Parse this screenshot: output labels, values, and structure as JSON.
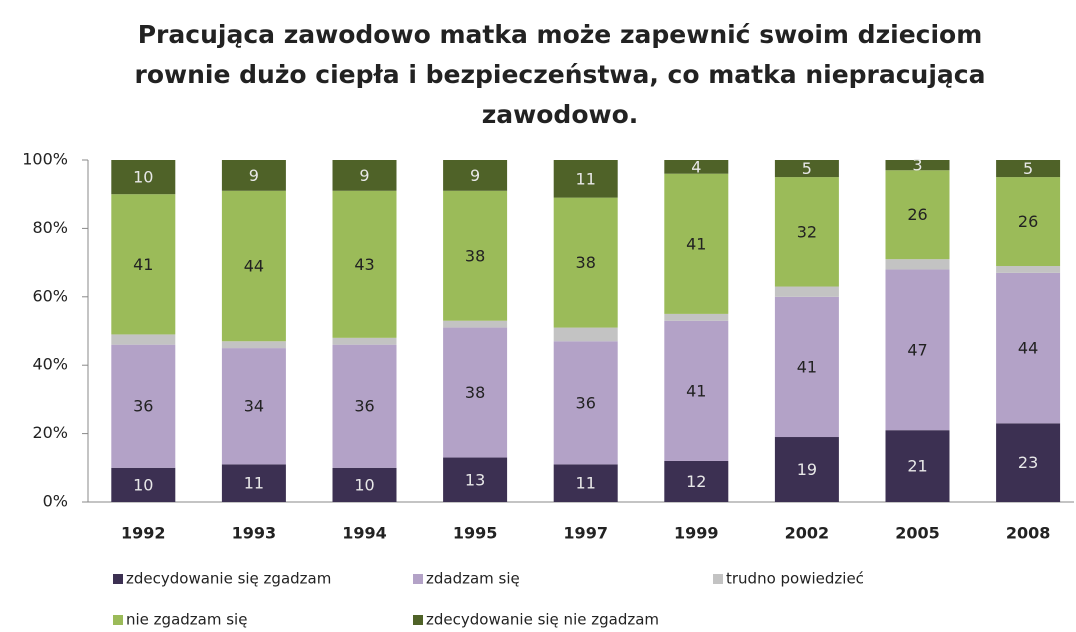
{
  "chart_data": {
    "type": "stacked_bar",
    "title": [
      "Pracująca zawodowo matka może zapewnić swoim dzieciom",
      "rownie dużo ciepła i bezpieczeństwa, co matka niepracująca",
      "zawodowo."
    ],
    "categories": [
      "1992",
      "1993",
      "1994",
      "1995",
      "1997",
      "1999",
      "2002",
      "2005",
      "2008"
    ],
    "series": [
      {
        "name": "zdecydowanie się zgadzam",
        "color": "#3c3052",
        "values": [
          10,
          11,
          10,
          13,
          11,
          12,
          19,
          21,
          23
        ]
      },
      {
        "name": "zdadzam się",
        "color": "#b3a2c7",
        "values": [
          36,
          34,
          36,
          38,
          36,
          41,
          41,
          47,
          44
        ]
      },
      {
        "name": "trudno powiedzieć",
        "color": "#c3c3c3",
        "values": [
          3,
          2,
          2,
          2,
          4,
          2,
          3,
          3,
          2
        ]
      },
      {
        "name": "nie zgadzam się",
        "color": "#9bbb59",
        "values": [
          41,
          44,
          43,
          38,
          38,
          41,
          32,
          26,
          26
        ]
      },
      {
        "name": "zdecydowanie się nie zgadzam",
        "color": "#4f6228",
        "values": [
          10,
          9,
          9,
          9,
          11,
          4,
          5,
          3,
          5
        ]
      }
    ],
    "label_series": [
      0,
      1,
      3,
      4
    ],
    "ylim": [
      0,
      100
    ],
    "yticks": [
      {
        "value": 0,
        "label": "0%"
      },
      {
        "value": 20,
        "label": "20%"
      },
      {
        "value": 40,
        "label": "40%"
      },
      {
        "value": 60,
        "label": "60%"
      },
      {
        "value": 80,
        "label": "80%"
      },
      {
        "value": 100,
        "label": "100%"
      }
    ],
    "grid": false
  }
}
